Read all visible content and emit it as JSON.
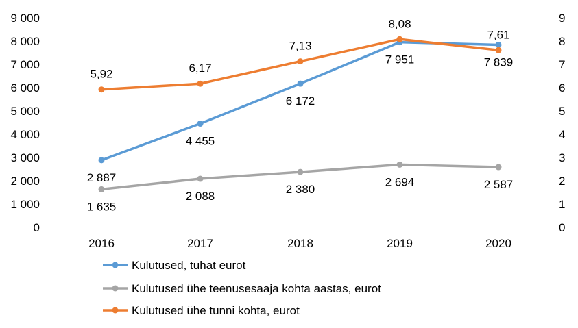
{
  "chart_data": {
    "type": "line",
    "categories": [
      "2016",
      "2017",
      "2018",
      "2019",
      "2020"
    ],
    "y_left": {
      "range": [
        0,
        9000
      ],
      "ticks": [
        "0",
        "1 000",
        "2 000",
        "3 000",
        "4 000",
        "5 000",
        "6 000",
        "7 000",
        "8 000",
        "9 000"
      ]
    },
    "y_right": {
      "range": [
        0,
        9
      ],
      "ticks": [
        "0",
        "1",
        "2",
        "3",
        "4",
        "5",
        "6",
        "7",
        "8",
        "9"
      ]
    },
    "grid": false,
    "legend": "bottom",
    "series": [
      {
        "name": "Kulutused, tuhat eurot",
        "axis": "left",
        "color": "#5B9BD5",
        "values": [
          2887,
          4455,
          6172,
          7951,
          7839
        ],
        "labels": [
          "2 887",
          "4 455",
          "6 172",
          "7 951",
          "7 839"
        ],
        "label_pos": "below"
      },
      {
        "name": "Kulutused ühe teenusesaaja kohta aastas, eurot",
        "axis": "left",
        "color": "#A5A5A5",
        "values": [
          1635,
          2088,
          2380,
          2694,
          2587
        ],
        "labels": [
          "1 635",
          "2 088",
          "2 380",
          "2 694",
          "2 587"
        ],
        "label_pos": "below"
      },
      {
        "name": "Kulutused ühe tunni kohta, eurot",
        "axis": "right",
        "color": "#ED7D31",
        "values": [
          5.92,
          6.17,
          7.13,
          8.08,
          7.61
        ],
        "labels": [
          "5,92",
          "6,17",
          "7,13",
          "8,08",
          "7,61"
        ],
        "label_pos": "above"
      }
    ]
  }
}
